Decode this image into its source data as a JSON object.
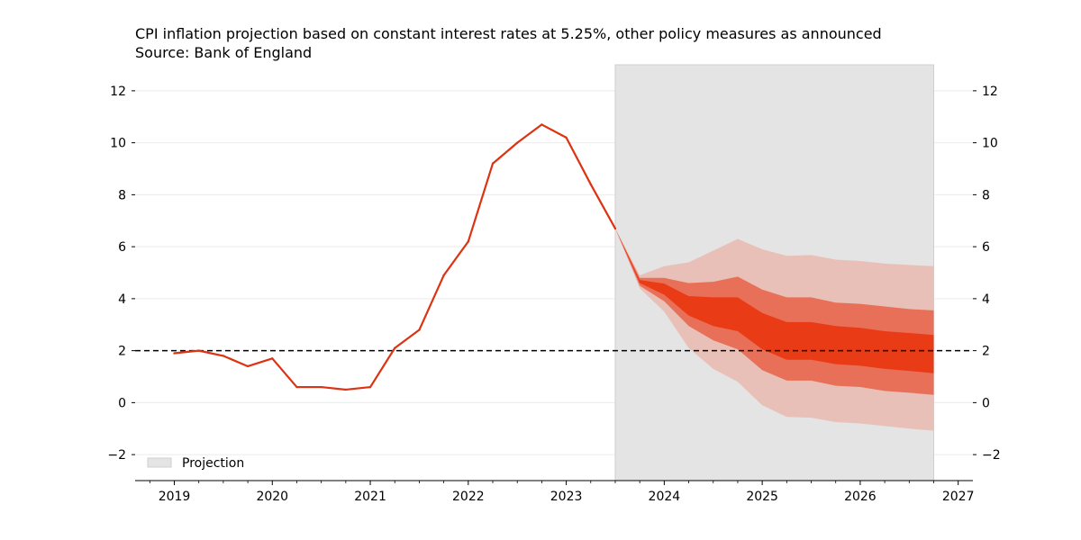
{
  "chart_data": {
    "type": "line",
    "title": "CPI inflation projection based on constant interest rates at 5.25%, other policy measures as announced",
    "subtitle": "Source: Bank of England",
    "xlabel": "",
    "ylabel": "",
    "xlim": [
      2018.6,
      2027.15
    ],
    "ylim": [
      -3,
      13
    ],
    "x_ticks": [
      "2019",
      "2020",
      "2021",
      "2022",
      "2023",
      "2024",
      "2025",
      "2026",
      "2027"
    ],
    "y_ticks": [
      "12",
      "10",
      "8",
      "6",
      "4",
      "2",
      "0",
      "−2"
    ],
    "grid": "horizontal",
    "legend": "bottom-left",
    "reference_line": {
      "y": 2,
      "style": "dashed",
      "color": "#000000"
    },
    "projection_region": {
      "label": "Projection",
      "x_start": 2023.5,
      "x_end": 2026.75,
      "color": "#e4e4e4"
    },
    "series": [
      {
        "color": "#dd3312",
        "x": [
          2019.0,
          2019.25,
          2019.5,
          2019.75,
          2020.0,
          2020.25,
          2020.5,
          2020.75,
          2021.0,
          2021.25,
          2021.5,
          2021.75,
          2022.0,
          2022.25,
          2022.5,
          2022.75,
          2023.0,
          2023.25,
          2023.5
        ],
        "y": [
          1.9,
          2.0,
          1.8,
          1.4,
          1.7,
          0.6,
          0.6,
          0.5,
          0.6,
          2.1,
          2.8,
          4.9,
          6.2,
          9.2,
          10.0,
          10.7,
          10.2,
          8.4,
          6.7
        ]
      }
    ],
    "fan": {
      "x": [
        2023.5,
        2023.75,
        2024.0,
        2024.25,
        2024.5,
        2024.75,
        2025.0,
        2025.25,
        2025.5,
        2025.75,
        2026.0,
        2026.25,
        2026.5,
        2026.75
      ],
      "bands": [
        {
          "color": "#e8c0b8",
          "upper": [
            6.7,
            4.9,
            5.25,
            5.4,
            5.85,
            6.3,
            5.9,
            5.65,
            5.68,
            5.5,
            5.45,
            5.35,
            5.3,
            5.25
          ],
          "lower": [
            6.7,
            4.4,
            3.5,
            2.1,
            1.3,
            0.8,
            -0.1,
            -0.55,
            -0.58,
            -0.75,
            -0.8,
            -0.9,
            -1.0,
            -1.08
          ]
        },
        {
          "color": "#e87058",
          "upper": [
            6.7,
            4.8,
            4.8,
            4.6,
            4.65,
            4.85,
            4.35,
            4.05,
            4.05,
            3.85,
            3.8,
            3.7,
            3.6,
            3.55
          ],
          "lower": [
            6.7,
            4.5,
            3.9,
            2.95,
            2.4,
            2.05,
            1.25,
            0.85,
            0.85,
            0.65,
            0.6,
            0.45,
            0.38,
            0.3
          ]
        },
        {
          "color": "#ea3b17",
          "upper": [
            6.7,
            4.72,
            4.58,
            4.1,
            4.05,
            4.05,
            3.45,
            3.1,
            3.1,
            2.95,
            2.88,
            2.75,
            2.68,
            2.6
          ],
          "lower": [
            6.7,
            4.6,
            4.15,
            3.35,
            2.95,
            2.75,
            2.05,
            1.65,
            1.65,
            1.48,
            1.42,
            1.3,
            1.22,
            1.13
          ]
        }
      ]
    }
  }
}
